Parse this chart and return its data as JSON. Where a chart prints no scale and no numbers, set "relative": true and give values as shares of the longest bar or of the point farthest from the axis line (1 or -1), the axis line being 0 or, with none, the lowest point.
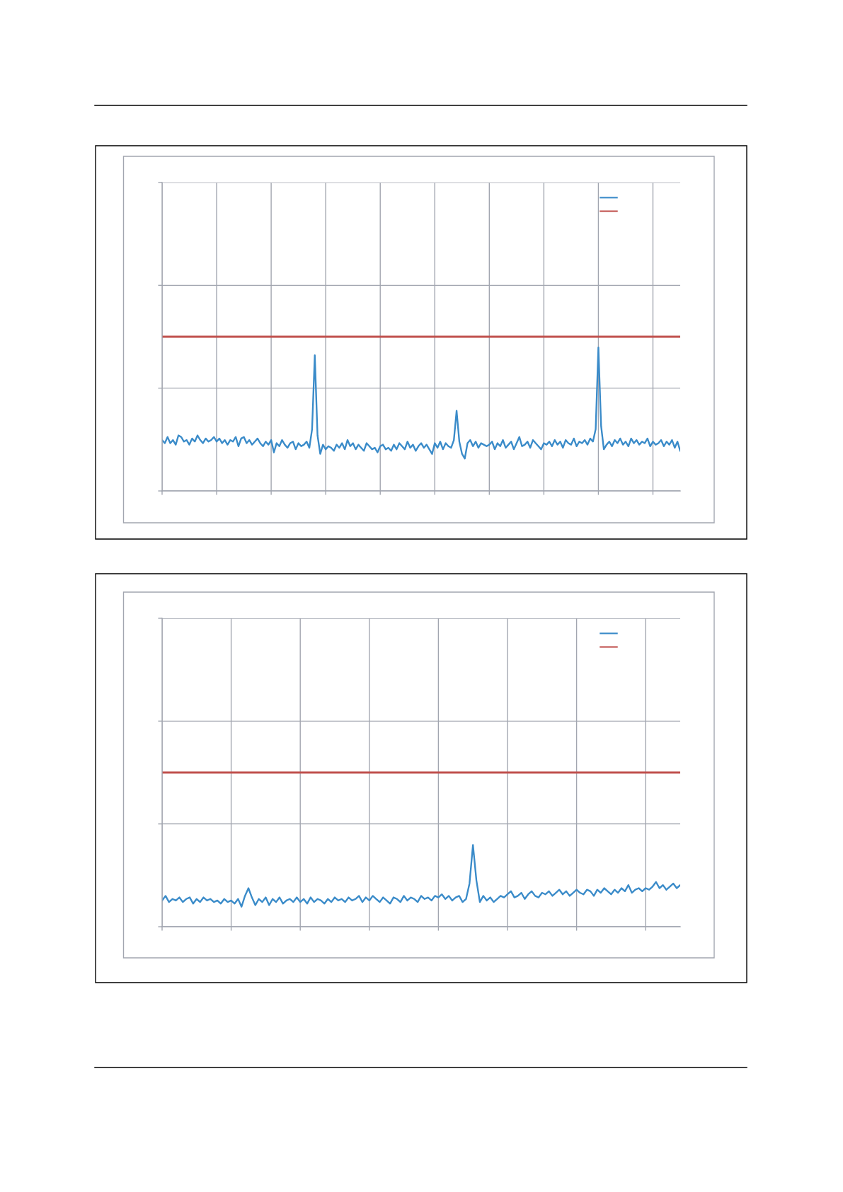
{
  "chart_data": [
    {
      "type": "line",
      "relative": true,
      "grid": true,
      "categories": [
        null,
        null,
        null,
        null,
        null,
        null,
        null,
        null,
        null,
        null,
        null,
        null,
        null,
        null,
        null,
        null,
        null,
        null,
        null,
        null,
        null,
        null,
        null,
        null,
        null,
        null,
        null,
        null,
        null,
        null,
        null,
        null,
        null,
        null,
        null,
        null,
        null,
        null,
        null,
        null,
        null,
        null,
        null,
        null,
        null,
        null,
        null,
        null,
        null,
        null,
        null,
        null,
        null,
        null,
        null,
        null,
        null,
        null,
        null,
        null,
        null,
        null,
        null,
        null,
        null,
        null,
        null,
        null,
        null,
        null,
        null,
        null,
        null,
        null,
        null,
        null,
        null,
        null,
        null,
        null,
        null,
        null,
        null,
        null,
        null,
        null,
        null,
        null,
        null,
        null,
        null,
        null,
        null,
        null,
        null,
        null,
        null,
        null,
        null,
        null,
        null,
        null,
        null,
        null,
        null,
        null,
        null,
        null,
        null,
        null,
        null,
        null,
        null,
        null,
        null,
        null,
        null,
        null,
        null,
        null,
        null,
        null,
        null,
        null,
        null,
        null,
        null,
        null,
        null,
        null,
        null,
        null,
        null,
        null,
        null,
        null,
        null,
        null,
        null,
        null,
        null,
        null,
        null,
        null,
        null,
        null,
        null,
        null,
        null,
        null,
        null,
        null,
        null,
        null,
        null,
        null,
        null,
        null,
        null,
        null,
        null,
        null,
        null,
        null,
        null,
        null,
        null,
        null,
        null,
        null,
        null,
        null,
        null,
        null,
        null,
        null,
        null,
        null,
        null,
        null,
        null,
        null,
        null,
        null,
        null,
        null,
        null,
        null,
        null,
        null,
        null
      ],
      "series": [
        {
          "color": "#3a8bc9",
          "values": [
            0.33,
            0.31,
            0.35,
            0.31,
            0.33,
            0.3,
            0.36,
            0.35,
            0.32,
            0.33,
            0.3,
            0.34,
            0.32,
            0.36,
            0.33,
            0.31,
            0.34,
            0.32,
            0.33,
            0.35,
            0.32,
            0.34,
            0.31,
            0.33,
            0.3,
            0.33,
            0.32,
            0.35,
            0.29,
            0.34,
            0.35,
            0.31,
            0.33,
            0.3,
            0.32,
            0.34,
            0.31,
            0.29,
            0.32,
            0.3,
            0.33,
            0.25,
            0.31,
            0.29,
            0.33,
            0.3,
            0.28,
            0.31,
            0.32,
            0.27,
            0.31,
            0.29,
            0.3,
            0.32,
            0.28,
            0.4,
            0.88,
            0.36,
            0.24,
            0.3,
            0.27,
            0.29,
            0.28,
            0.26,
            0.3,
            0.28,
            0.31,
            0.27,
            0.33,
            0.29,
            0.31,
            0.27,
            0.3,
            0.28,
            0.26,
            0.31,
            0.29,
            0.27,
            0.28,
            0.25,
            0.29,
            0.3,
            0.27,
            0.28,
            0.26,
            0.3,
            0.27,
            0.31,
            0.29,
            0.27,
            0.32,
            0.28,
            0.3,
            0.26,
            0.29,
            0.31,
            0.28,
            0.3,
            0.27,
            0.24,
            0.31,
            0.28,
            0.32,
            0.27,
            0.31,
            0.29,
            0.28,
            0.33,
            0.52,
            0.32,
            0.24,
            0.21,
            0.31,
            0.33,
            0.29,
            0.32,
            0.28,
            0.31,
            0.3,
            0.29,
            0.3,
            0.32,
            0.27,
            0.31,
            0.29,
            0.33,
            0.28,
            0.3,
            0.32,
            0.27,
            0.31,
            0.35,
            0.29,
            0.3,
            0.32,
            0.28,
            0.33,
            0.31,
            0.29,
            0.27,
            0.31,
            0.3,
            0.32,
            0.29,
            0.33,
            0.3,
            0.32,
            0.28,
            0.33,
            0.31,
            0.3,
            0.34,
            0.29,
            0.32,
            0.31,
            0.33,
            0.3,
            0.34,
            0.32,
            0.4,
            0.93,
            0.42,
            0.27,
            0.3,
            0.32,
            0.29,
            0.33,
            0.31,
            0.34,
            0.3,
            0.32,
            0.29,
            0.34,
            0.31,
            0.33,
            0.3,
            0.32,
            0.31,
            0.34,
            0.29,
            0.32,
            0.3,
            0.31,
            0.33,
            0.29,
            0.32,
            0.3,
            0.33,
            0.28,
            0.32,
            0.26
          ]
        },
        {
          "color": "#c0504d",
          "values": [
            1,
            1,
            1,
            1,
            1,
            1,
            1,
            1,
            1,
            1,
            1,
            1,
            1,
            1,
            1,
            1,
            1,
            1,
            1,
            1,
            1,
            1,
            1,
            1,
            1,
            1,
            1,
            1,
            1,
            1,
            1,
            1,
            1,
            1,
            1,
            1,
            1,
            1,
            1,
            1,
            1,
            1,
            1,
            1,
            1,
            1,
            1,
            1,
            1,
            1,
            1,
            1,
            1,
            1,
            1,
            1,
            1,
            1,
            1,
            1,
            1,
            1,
            1,
            1,
            1,
            1,
            1,
            1,
            1,
            1,
            1,
            1,
            1,
            1,
            1,
            1,
            1,
            1,
            1,
            1,
            1,
            1,
            1,
            1,
            1,
            1,
            1,
            1,
            1,
            1,
            1,
            1,
            1,
            1,
            1,
            1,
            1,
            1,
            1,
            1,
            1,
            1,
            1,
            1,
            1,
            1,
            1,
            1,
            1,
            1,
            1,
            1,
            1,
            1,
            1,
            1,
            1,
            1,
            1,
            1,
            1,
            1,
            1,
            1,
            1,
            1,
            1,
            1,
            1,
            1,
            1,
            1,
            1,
            1,
            1,
            1,
            1,
            1,
            1,
            1,
            1,
            1,
            1,
            1,
            1,
            1,
            1,
            1,
            1,
            1,
            1,
            1,
            1,
            1,
            1,
            1,
            1,
            1,
            1,
            1,
            1,
            1,
            1,
            1,
            1,
            1,
            1,
            1,
            1,
            1,
            1,
            1,
            1,
            1,
            1,
            1,
            1,
            1,
            1,
            1,
            1,
            1,
            1,
            1,
            1,
            1,
            1,
            1,
            1,
            1,
            1
          ]
        }
      ]
    },
    {
      "type": "line",
      "relative": true,
      "grid": true,
      "categories": [
        null,
        null,
        null,
        null,
        null,
        null,
        null,
        null,
        null,
        null,
        null,
        null,
        null,
        null,
        null,
        null,
        null,
        null,
        null,
        null,
        null,
        null,
        null,
        null,
        null,
        null,
        null,
        null,
        null,
        null,
        null,
        null,
        null,
        null,
        null,
        null,
        null,
        null,
        null,
        null,
        null,
        null,
        null,
        null,
        null,
        null,
        null,
        null,
        null,
        null,
        null,
        null,
        null,
        null,
        null,
        null,
        null,
        null,
        null,
        null,
        null,
        null,
        null,
        null,
        null,
        null,
        null,
        null,
        null,
        null,
        null,
        null,
        null,
        null,
        null,
        null,
        null,
        null,
        null,
        null,
        null,
        null,
        null,
        null,
        null,
        null,
        null,
        null,
        null,
        null,
        null,
        null,
        null,
        null,
        null,
        null,
        null,
        null,
        null,
        null,
        null,
        null,
        null,
        null,
        null,
        null,
        null,
        null,
        null,
        null,
        null,
        null,
        null,
        null,
        null,
        null,
        null,
        null,
        null,
        null,
        null,
        null,
        null,
        null,
        null,
        null,
        null,
        null,
        null,
        null,
        null,
        null,
        null,
        null,
        null,
        null,
        null,
        null,
        null,
        null,
        null,
        null,
        null,
        null,
        null,
        null,
        null,
        null,
        null,
        null,
        null
      ],
      "series": [
        {
          "color": "#3a8bc9",
          "values": [
            0.17,
            0.2,
            0.16,
            0.18,
            0.17,
            0.19,
            0.16,
            0.18,
            0.19,
            0.15,
            0.18,
            0.16,
            0.19,
            0.17,
            0.18,
            0.16,
            0.17,
            0.15,
            0.18,
            0.16,
            0.17,
            0.15,
            0.18,
            0.13,
            0.2,
            0.25,
            0.19,
            0.14,
            0.18,
            0.16,
            0.19,
            0.14,
            0.18,
            0.16,
            0.19,
            0.15,
            0.17,
            0.18,
            0.16,
            0.19,
            0.16,
            0.18,
            0.15,
            0.19,
            0.16,
            0.18,
            0.17,
            0.15,
            0.18,
            0.16,
            0.19,
            0.17,
            0.18,
            0.16,
            0.19,
            0.17,
            0.18,
            0.2,
            0.16,
            0.19,
            0.17,
            0.2,
            0.18,
            0.16,
            0.19,
            0.17,
            0.15,
            0.19,
            0.18,
            0.16,
            0.2,
            0.17,
            0.19,
            0.18,
            0.16,
            0.2,
            0.18,
            0.19,
            0.17,
            0.2,
            0.19,
            0.21,
            0.18,
            0.2,
            0.17,
            0.19,
            0.2,
            0.16,
            0.18,
            0.28,
            0.53,
            0.3,
            0.16,
            0.2,
            0.17,
            0.19,
            0.16,
            0.18,
            0.2,
            0.19,
            0.21,
            0.23,
            0.19,
            0.2,
            0.22,
            0.18,
            0.21,
            0.23,
            0.2,
            0.19,
            0.22,
            0.21,
            0.23,
            0.2,
            0.22,
            0.24,
            0.21,
            0.23,
            0.2,
            0.22,
            0.24,
            0.22,
            0.21,
            0.24,
            0.23,
            0.2,
            0.24,
            0.22,
            0.25,
            0.23,
            0.21,
            0.24,
            0.22,
            0.25,
            0.23,
            0.27,
            0.22,
            0.24,
            0.25,
            0.23,
            0.25,
            0.24,
            0.26,
            0.29,
            0.25,
            0.27,
            0.24,
            0.26,
            0.28,
            0.25,
            0.27
          ]
        },
        {
          "color": "#c0504d",
          "values": [
            1,
            1,
            1,
            1,
            1,
            1,
            1,
            1,
            1,
            1,
            1,
            1,
            1,
            1,
            1,
            1,
            1,
            1,
            1,
            1,
            1,
            1,
            1,
            1,
            1,
            1,
            1,
            1,
            1,
            1,
            1,
            1,
            1,
            1,
            1,
            1,
            1,
            1,
            1,
            1,
            1,
            1,
            1,
            1,
            1,
            1,
            1,
            1,
            1,
            1,
            1,
            1,
            1,
            1,
            1,
            1,
            1,
            1,
            1,
            1,
            1,
            1,
            1,
            1,
            1,
            1,
            1,
            1,
            1,
            1,
            1,
            1,
            1,
            1,
            1,
            1,
            1,
            1,
            1,
            1,
            1,
            1,
            1,
            1,
            1,
            1,
            1,
            1,
            1,
            1,
            1,
            1,
            1,
            1,
            1,
            1,
            1,
            1,
            1,
            1,
            1,
            1,
            1,
            1,
            1,
            1,
            1,
            1,
            1,
            1,
            1,
            1,
            1,
            1,
            1,
            1,
            1,
            1,
            1,
            1,
            1,
            1,
            1,
            1,
            1,
            1,
            1,
            1,
            1,
            1,
            1,
            1,
            1,
            1,
            1,
            1,
            1,
            1,
            1,
            1,
            1,
            1,
            1,
            1,
            1,
            1,
            1,
            1,
            1,
            1,
            1
          ]
        }
      ]
    }
  ]
}
